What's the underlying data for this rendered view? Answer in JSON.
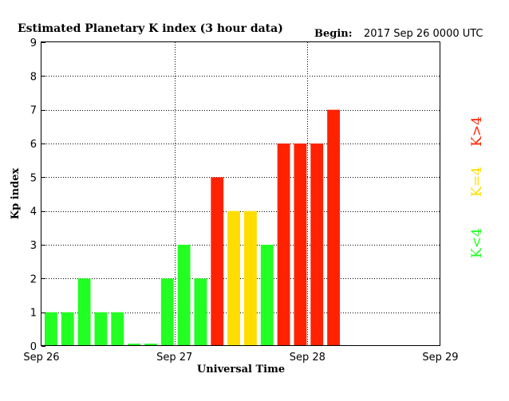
{
  "chart_data": {
    "type": "bar",
    "title": "Estimated Planetary K index (3 hour data)",
    "begin_label": "Begin:",
    "begin_value": "2017 Sep 26 0000 UTC",
    "ylabel": "Kp index",
    "xlabel": "Universal Time",
    "ylim": [
      0,
      9
    ],
    "yticks": [
      "0",
      "1",
      "2",
      "3",
      "4",
      "5",
      "6",
      "7",
      "8",
      "9"
    ],
    "xticks": [
      "Sep 26",
      "Sep 27",
      "Sep 28",
      "Sep 29"
    ],
    "grid": true,
    "slots_total": 24,
    "values": [
      1,
      1,
      2,
      1,
      1,
      0.07,
      0.07,
      2,
      3,
      2,
      5,
      4,
      4,
      3,
      6,
      6,
      6,
      7
    ],
    "colors": {
      "low": "#22ff22",
      "storm_watch": "#ffdd00",
      "storm": "#ff2200"
    },
    "legend": [
      {
        "label": "K<4",
        "color": "#22ff22"
      },
      {
        "label": "K=4",
        "color": "#ffdd00"
      },
      {
        "label": "K>4",
        "color": "#ff2200"
      }
    ]
  }
}
